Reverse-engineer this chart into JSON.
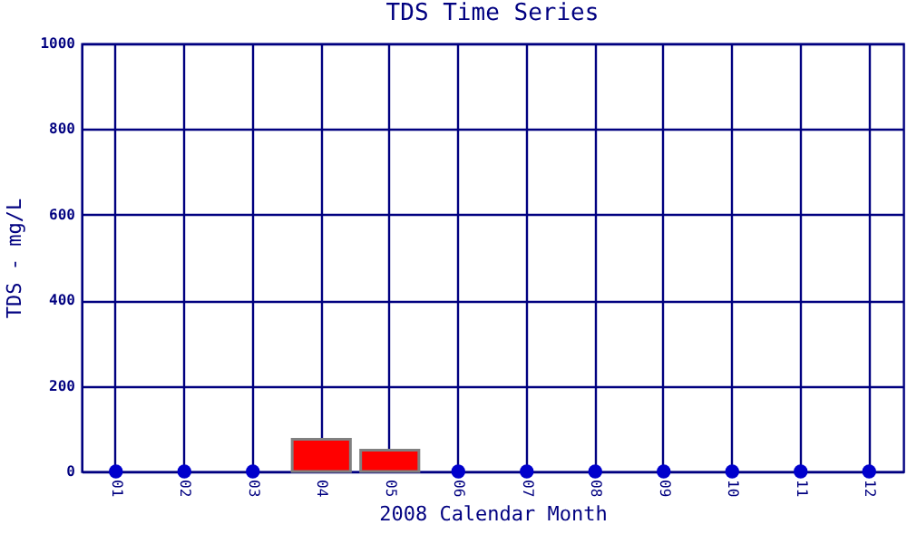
{
  "chart_data": {
    "type": "bar",
    "title": "TDS Time Series",
    "xlabel": "2008 Calendar Month",
    "ylabel": "TDS - mg/L",
    "categories": [
      "01",
      "02",
      "03",
      "04",
      "05",
      "06",
      "07",
      "08",
      "09",
      "10",
      "11",
      "12"
    ],
    "series": [
      {
        "type": "bar",
        "color": "#ff0000",
        "values": [
          null,
          null,
          null,
          75,
          50,
          null,
          null,
          null,
          null,
          null,
          null,
          null
        ]
      },
      {
        "type": "scatter",
        "color": "#0000cc",
        "values": [
          0,
          0,
          0,
          null,
          null,
          0,
          0,
          0,
          0,
          0,
          0,
          0
        ]
      }
    ],
    "ylim": [
      0,
      1000
    ],
    "yticks": [
      0,
      200,
      400,
      600,
      800,
      1000
    ],
    "grid": true,
    "marker": "circle"
  }
}
